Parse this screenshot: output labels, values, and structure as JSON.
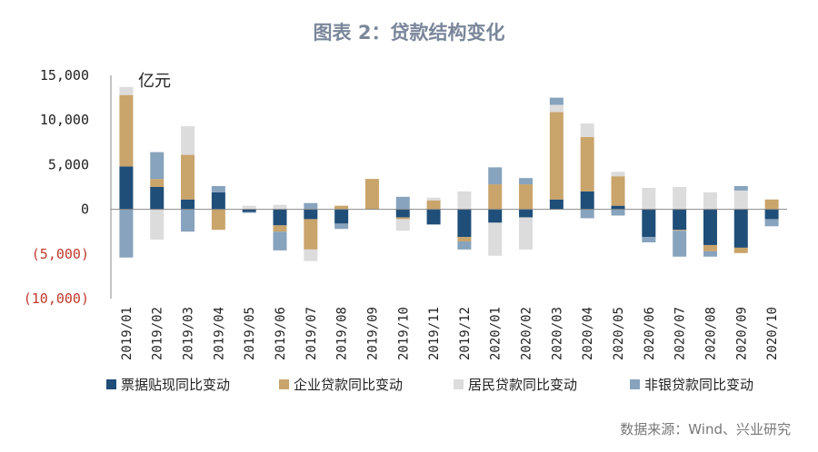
{
  "chart_data": {
    "type": "bar",
    "stacked": true,
    "title": "图表 2：贷款结构变化",
    "unit_label": "亿元",
    "source": "数据来源：Wind、兴业研究",
    "ylim": [
      -10000,
      15000
    ],
    "yticks": [
      15000,
      10000,
      5000,
      0,
      -5000,
      -10000
    ],
    "ytick_labels": [
      "15,000",
      "10,000",
      "5,000",
      "0",
      "(5,000)",
      "(10,000)"
    ],
    "categories": [
      "2019/01",
      "2019/02",
      "2019/03",
      "2019/04",
      "2019/05",
      "2019/06",
      "2019/07",
      "2019/08",
      "2019/09",
      "2019/10",
      "2019/11",
      "2019/12",
      "2020/01",
      "2020/02",
      "2020/03",
      "2020/04",
      "2020/05",
      "2020/06",
      "2020/07",
      "2020/08",
      "2020/09",
      "2020/10"
    ],
    "legend_position": "bottom",
    "series": [
      {
        "name": "票据贴现同比变动",
        "color": "#1f4e79",
        "values": [
          4800,
          2500,
          1100,
          1900,
          -300,
          -1800,
          -1100,
          -1600,
          0,
          -900,
          -1700,
          -3100,
          -1500,
          -900,
          1100,
          2000,
          400,
          -3100,
          -2300,
          -4000,
          -4300,
          -1100
        ]
      },
      {
        "name": "企业贷款同比变动",
        "color": "#c9a46b",
        "values": [
          8000,
          900,
          5000,
          -2300,
          0,
          -700,
          -3400,
          400,
          3400,
          -200,
          1000,
          -500,
          2800,
          2800,
          9800,
          6100,
          3300,
          0,
          -100,
          -700,
          -600,
          1100
        ]
      },
      {
        "name": "居民贷款同比变动",
        "color": "#dcdcdc",
        "values": [
          900,
          -3400,
          3200,
          0,
          400,
          500,
          -1300,
          0,
          0,
          -1300,
          300,
          2000,
          -3700,
          -3600,
          800,
          1500,
          500,
          2400,
          2500,
          1900,
          2100,
          0
        ]
      },
      {
        "name": "非银贷款同比变动",
        "color": "#87a3bd",
        "values": [
          -5400,
          3000,
          -2500,
          700,
          -100,
          -2100,
          700,
          -600,
          0,
          1400,
          0,
          -900,
          1900,
          700,
          800,
          -1000,
          -700,
          -600,
          -2900,
          -600,
          500,
          -800
        ]
      }
    ]
  }
}
